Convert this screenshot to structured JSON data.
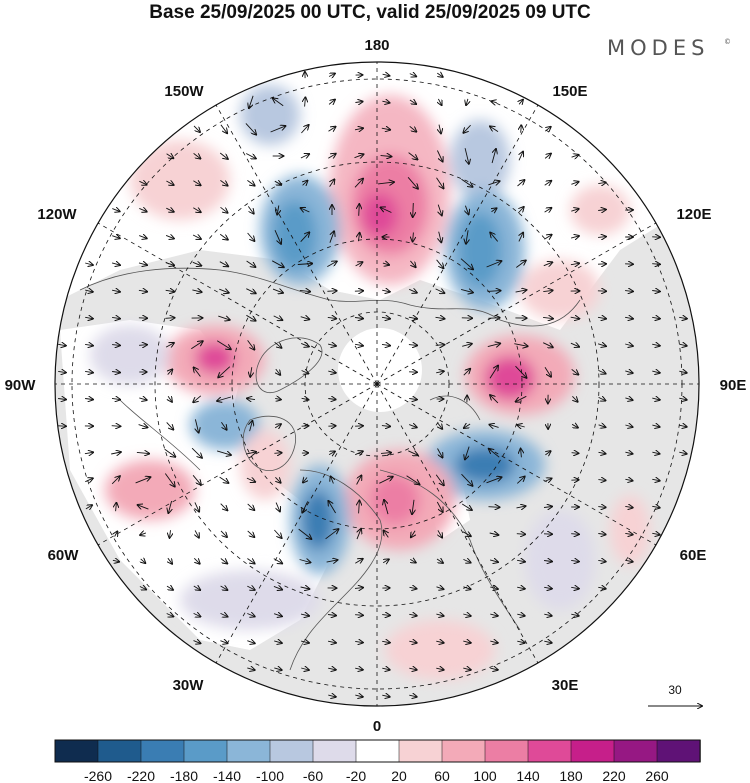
{
  "title": "Base 25/09/2025 00 UTC, valid 25/09/2025 09 UTC",
  "brand": {
    "name": "MODES",
    "mark": "©"
  },
  "longitude_labels": {
    "lon_180": "180",
    "lon_150e": "150E",
    "lon_120e": "120E",
    "lon_90e": "90E",
    "lon_60e": "60E",
    "lon_30e": "30E",
    "lon_0": "0",
    "lon_30w": "30W",
    "lon_60w": "60W",
    "lon_90w": "90W",
    "lon_120w": "120W",
    "lon_150w": "150W"
  },
  "vector_reference": {
    "label": "30"
  },
  "colorbar": {
    "ticks": [
      "-260",
      "-220",
      "-180",
      "-140",
      "-100",
      "-60",
      "-20",
      "20",
      "60",
      "100",
      "140",
      "180",
      "220",
      "260"
    ],
    "colors": [
      "#0f2c4f",
      "#1f5b8d",
      "#3a7db3",
      "#5a9bc8",
      "#8bb6d8",
      "#b8c8e0",
      "#dedbea",
      "#ffffff",
      "#f7d2d4",
      "#f3aab8",
      "#ec7ea4",
      "#df4a98",
      "#c61f8a",
      "#961883",
      "#5f1276"
    ]
  },
  "colors": {
    "land": "#e6e6e6",
    "ocean": "#ffffff",
    "coast": "#555555",
    "grid": "#111111"
  }
}
